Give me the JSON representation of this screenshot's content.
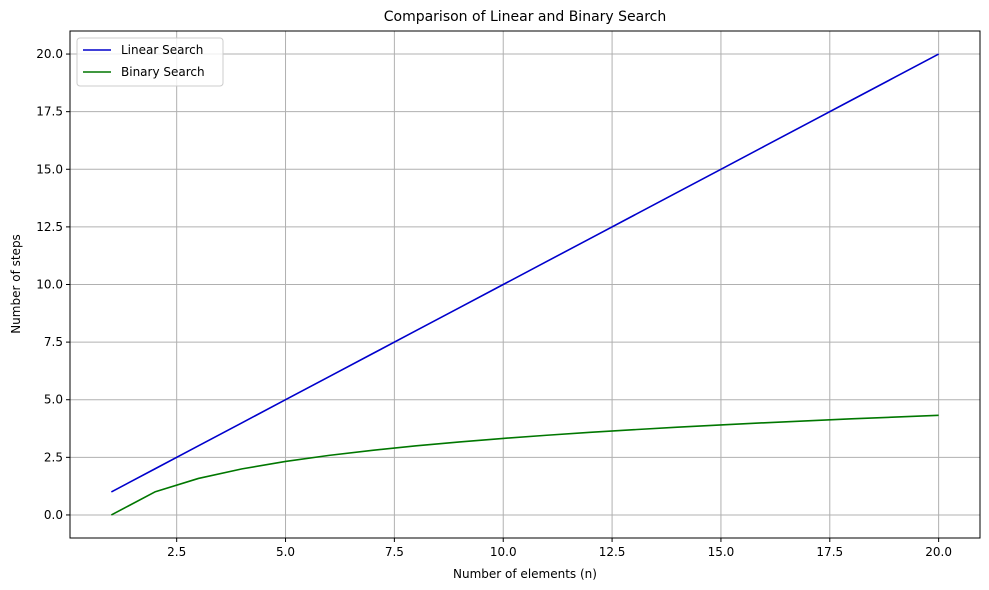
{
  "chart_data": {
    "type": "line",
    "title": "Comparison of Linear and Binary Search",
    "xlabel": "Number of elements (n)",
    "ylabel": "Number of steps",
    "xlim": [
      0.05,
      20.95
    ],
    "ylim": [
      -1.0,
      21.0
    ],
    "xticks": [
      2.5,
      5.0,
      7.5,
      10.0,
      12.5,
      15.0,
      17.5,
      20.0
    ],
    "xtick_labels": [
      "2.5",
      "5.0",
      "7.5",
      "10.0",
      "12.5",
      "15.0",
      "17.5",
      "20.0"
    ],
    "yticks": [
      0.0,
      2.5,
      5.0,
      7.5,
      10.0,
      12.5,
      15.0,
      17.5,
      20.0
    ],
    "ytick_labels": [
      "0.0",
      "2.5",
      "5.0",
      "7.5",
      "10.0",
      "12.5",
      "15.0",
      "17.5",
      "20.0"
    ],
    "grid": true,
    "legend_position": "top-left",
    "x": [
      1,
      2,
      3,
      4,
      5,
      6,
      7,
      8,
      9,
      10,
      11,
      12,
      13,
      14,
      15,
      16,
      17,
      18,
      19,
      20
    ],
    "series": [
      {
        "name": "Linear Search",
        "color": "#0000cc",
        "values": [
          1,
          2,
          3,
          4,
          5,
          6,
          7,
          8,
          9,
          10,
          11,
          12,
          13,
          14,
          15,
          16,
          17,
          18,
          19,
          20
        ]
      },
      {
        "name": "Binary Search",
        "color": "#007700",
        "values": [
          0,
          1,
          1.585,
          2,
          2.322,
          2.585,
          2.807,
          3,
          3.17,
          3.322,
          3.459,
          3.585,
          3.7,
          3.807,
          3.907,
          4,
          4.087,
          4.17,
          4.248,
          4.322
        ]
      }
    ]
  }
}
